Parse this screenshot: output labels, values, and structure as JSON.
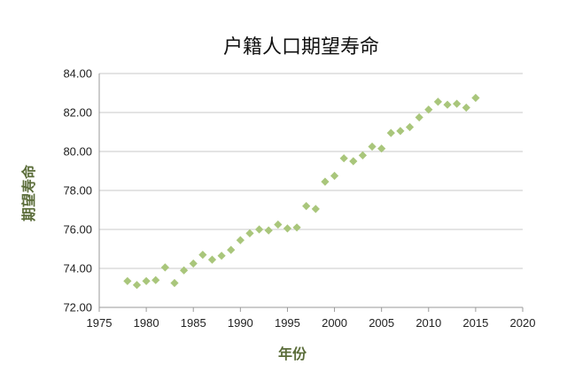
{
  "chart_data": {
    "type": "scatter",
    "title": "户籍人口期望寿命",
    "xlabel": "年份",
    "ylabel": "期望寿命",
    "xlim": [
      1975,
      2020
    ],
    "ylim": [
      72,
      84
    ],
    "x_ticks": [
      1975,
      1980,
      1985,
      1990,
      1995,
      2000,
      2005,
      2010,
      2015,
      2020
    ],
    "y_ticks": [
      72,
      74,
      76,
      78,
      80,
      82,
      84
    ],
    "x_tick_labels": [
      "1975",
      "1980",
      "1985",
      "1990",
      "1995",
      "2000",
      "2005",
      "2010",
      "2015",
      "2020"
    ],
    "y_tick_labels": [
      "72.00",
      "74.00",
      "76.00",
      "78.00",
      "80.00",
      "82.00",
      "84.00"
    ],
    "grid": "horizontal",
    "legend": "none",
    "marker": "diamond",
    "colors": {
      "marker": "#a9c67b",
      "axis_label": "#5b6d3a",
      "grid": "#c8c8c8"
    },
    "series": [
      {
        "points": [
          [
            1978,
            73.35
          ],
          [
            1979,
            73.15
          ],
          [
            1980,
            73.35
          ],
          [
            1981,
            73.4
          ],
          [
            1982,
            74.05
          ],
          [
            1983,
            73.25
          ],
          [
            1984,
            73.9
          ],
          [
            1985,
            74.25
          ],
          [
            1986,
            74.7
          ],
          [
            1987,
            74.45
          ],
          [
            1988,
            74.65
          ],
          [
            1989,
            74.95
          ],
          [
            1990,
            75.45
          ],
          [
            1991,
            75.8
          ],
          [
            1992,
            76.0
          ],
          [
            1993,
            75.95
          ],
          [
            1994,
            76.25
          ],
          [
            1995,
            76.05
          ],
          [
            1996,
            76.1
          ],
          [
            1997,
            77.2
          ],
          [
            1998,
            77.05
          ],
          [
            1999,
            78.45
          ],
          [
            2000,
            78.75
          ],
          [
            2001,
            79.65
          ],
          [
            2002,
            79.5
          ],
          [
            2003,
            79.8
          ],
          [
            2004,
            80.25
          ],
          [
            2005,
            80.15
          ],
          [
            2006,
            80.95
          ],
          [
            2007,
            81.05
          ],
          [
            2008,
            81.25
          ],
          [
            2009,
            81.75
          ],
          [
            2010,
            82.15
          ],
          [
            2011,
            82.55
          ],
          [
            2012,
            82.4
          ],
          [
            2013,
            82.45
          ],
          [
            2014,
            82.25
          ],
          [
            2015,
            82.75
          ]
        ]
      }
    ]
  }
}
